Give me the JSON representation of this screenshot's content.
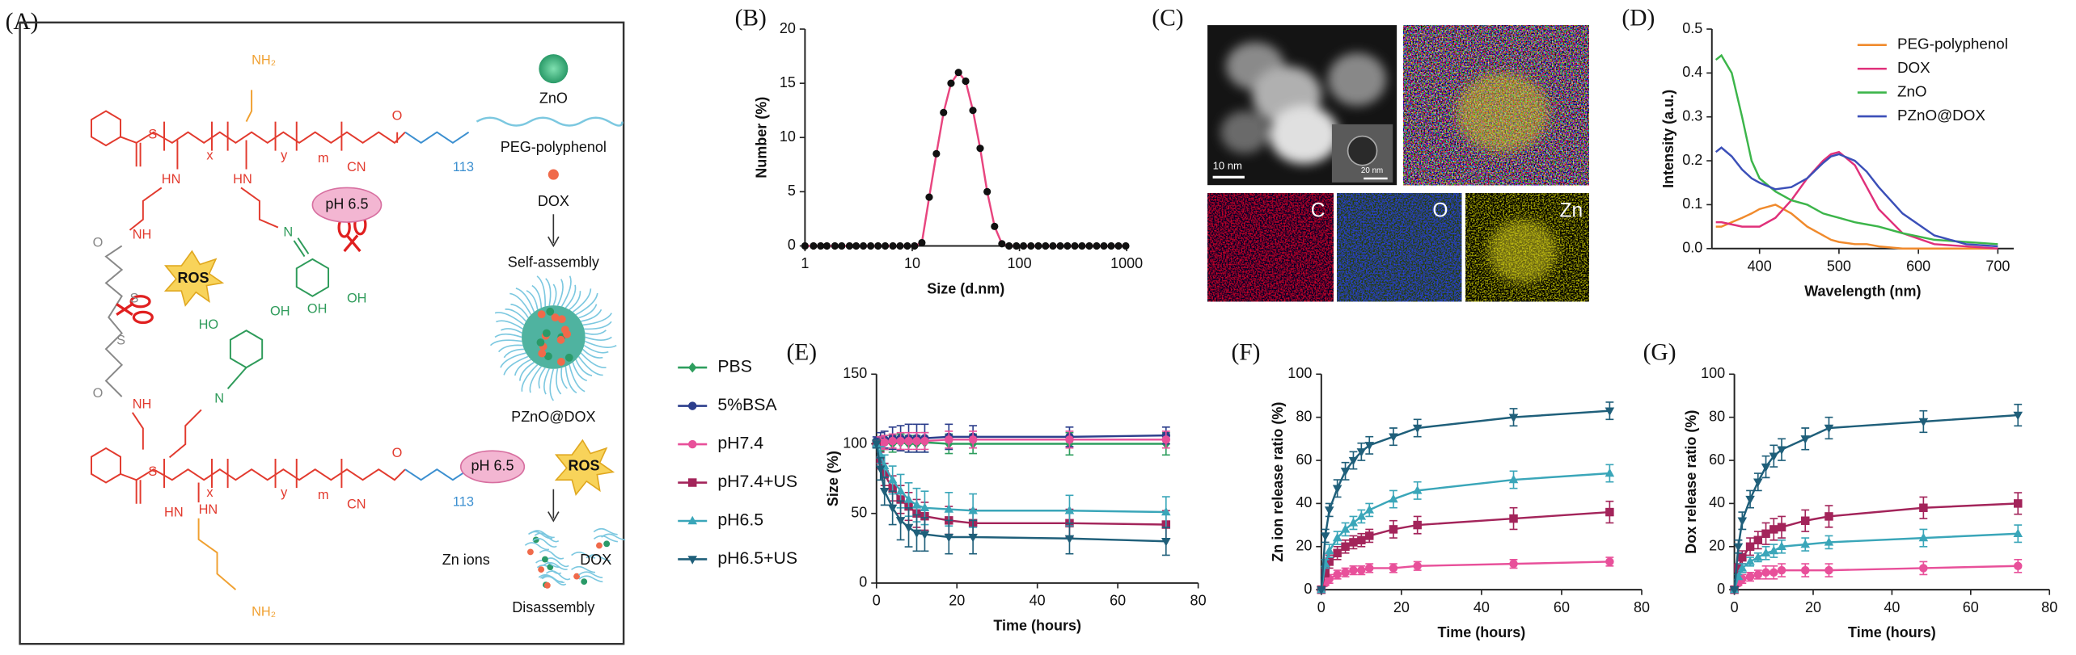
{
  "scheme": {
    "label": "(A)",
    "components": [
      "ZnO",
      "PEG-polyphenol",
      "DOX",
      "Self-assembly",
      "PZnO@DOX",
      "Disassembly"
    ],
    "stimuli": [
      "pH 6.5",
      "ROS",
      "pH 6.5",
      "ROS"
    ],
    "products": [
      "Zn ions",
      "DOX"
    ],
    "chem": [
      "NH₂",
      "S",
      "x",
      "y",
      "m",
      "CN",
      "O",
      "113",
      "HN",
      "HN",
      "N",
      "OH",
      "OH",
      "HO",
      "OH",
      "N",
      "O",
      "S",
      "S",
      "O",
      "S",
      "HN",
      "HN",
      "x",
      "y",
      "m",
      "CN",
      "O",
      "113",
      "NH₂",
      "NH",
      "NH"
    ]
  },
  "microscopy": {
    "label": "(C)",
    "scale_bars": [
      "10 nm",
      "20 nm"
    ],
    "maps": [
      "C",
      "O",
      "Zn"
    ]
  },
  "chart_data": [
    {
      "type": "line",
      "panel_label": "(B)",
      "xlabel": "Size (d.nm)",
      "ylabel": "Number (%)",
      "xscale": "log",
      "xlim": [
        1,
        1000
      ],
      "xticks": [
        1,
        10,
        100,
        1000
      ],
      "ylim": [
        0,
        20
      ],
      "yticks": [
        0,
        5,
        10,
        15,
        20
      ],
      "x": [
        1,
        1.2,
        1.4,
        1.6,
        1.9,
        2.2,
        2.6,
        3,
        3.5,
        4.1,
        4.8,
        5.6,
        6.6,
        7.7,
        9,
        10.5,
        12.3,
        14.4,
        16.8,
        19.6,
        23,
        27,
        31.5,
        36.8,
        43,
        50,
        58.6,
        68.6,
        80,
        93.6,
        109,
        128,
        150,
        175,
        205,
        240,
        280,
        328,
        383,
        448,
        524,
        613,
        717,
        838,
        980
      ],
      "series": [
        {
          "color": "#e8457f",
          "marker": "circle",
          "marker_color": "#111111",
          "values": [
            0,
            0,
            0,
            0,
            0,
            0,
            0,
            0,
            0,
            0,
            0,
            0,
            0,
            0,
            0,
            0,
            0.3,
            4.5,
            8.5,
            12.3,
            15,
            16,
            15.2,
            12.5,
            9,
            5,
            1.8,
            0.2,
            0,
            0,
            0,
            0,
            0,
            0,
            0,
            0,
            0,
            0,
            0,
            0,
            0,
            0,
            0,
            0,
            0
          ]
        }
      ]
    },
    {
      "type": "line",
      "panel_label": "(D)",
      "xlabel": "Wavelength (nm)",
      "ylabel": "Intensity (a.u.)",
      "xlim": [
        340,
        720
      ],
      "xticks": [
        400,
        500,
        600,
        700
      ],
      "ylim": [
        0,
        0.5
      ],
      "yticks": [
        {
          "value": 0,
          "label": "0.0"
        },
        0.1,
        0.2,
        0.3,
        0.4,
        0.5
      ],
      "legend": "top-right",
      "x": [
        345,
        352,
        365,
        378,
        390,
        400,
        420,
        440,
        460,
        480,
        490,
        500,
        520,
        535,
        550,
        580,
        620,
        660,
        700
      ],
      "series": [
        {
          "name": "PEG-polyphenol",
          "color": "#f08a2c",
          "values": [
            0.05,
            0.05,
            0.06,
            0.07,
            0.08,
            0.09,
            0.1,
            0.08,
            0.05,
            0.03,
            0.02,
            0.015,
            0.01,
            0.01,
            0.005,
            0,
            0,
            0,
            0
          ]
        },
        {
          "name": "DOX",
          "color": "#e0307a",
          "values": [
            0.06,
            0.06,
            0.055,
            0.05,
            0.05,
            0.05,
            0.07,
            0.11,
            0.16,
            0.2,
            0.215,
            0.22,
            0.19,
            0.14,
            0.09,
            0.035,
            0.01,
            0.005,
            0
          ]
        },
        {
          "name": "ZnO",
          "color": "#3cb54a",
          "values": [
            0.43,
            0.44,
            0.4,
            0.3,
            0.2,
            0.16,
            0.13,
            0.11,
            0.1,
            0.08,
            0.075,
            0.07,
            0.06,
            0.055,
            0.05,
            0.035,
            0.02,
            0.015,
            0.01
          ]
        },
        {
          "name": "PZnO@DOX",
          "color": "#3b4fb8",
          "values": [
            0.22,
            0.23,
            0.21,
            0.18,
            0.16,
            0.15,
            0.135,
            0.14,
            0.16,
            0.195,
            0.21,
            0.215,
            0.2,
            0.175,
            0.14,
            0.08,
            0.03,
            0.01,
            0.005
          ]
        }
      ]
    },
    {
      "type": "line",
      "panel_label": "(E)",
      "xlabel": "Time (hours)",
      "ylabel": "Size (%)",
      "xlim": [
        0,
        80
      ],
      "xticks": [
        0,
        20,
        40,
        60,
        80
      ],
      "ylim": [
        0,
        150
      ],
      "yticks": [
        0,
        50,
        100,
        150
      ],
      "legend": "left",
      "x": [
        0,
        1,
        2,
        4,
        6,
        8,
        10,
        12,
        18,
        24,
        48,
        72
      ],
      "series": [
        {
          "name": "PBS",
          "color": "#2e9e5e",
          "marker": "diamond",
          "values": [
            100,
            100,
            101,
            100,
            101,
            100,
            100,
            101,
            100,
            100,
            100,
            100
          ],
          "errors": [
            3,
            5,
            5,
            6,
            6,
            6,
            6,
            7,
            7,
            7,
            8,
            8
          ]
        },
        {
          "name": "5%BSA",
          "color": "#2c3e8c",
          "marker": "circle",
          "values": [
            102,
            103,
            103,
            104,
            104,
            104,
            104,
            104,
            105,
            105,
            105,
            106
          ],
          "errors": [
            3,
            5,
            6,
            8,
            9,
            10,
            10,
            10,
            9,
            8,
            7,
            6
          ]
        },
        {
          "name": "pH7.4",
          "color": "#e8509a",
          "marker": "circle",
          "values": [
            100,
            101,
            101,
            102,
            102,
            102,
            102,
            102,
            103,
            103,
            103,
            103
          ],
          "errors": [
            2,
            4,
            5,
            5,
            6,
            6,
            6,
            6,
            6,
            6,
            6,
            6
          ]
        },
        {
          "name": "pH7.4+US",
          "color": "#a3245a",
          "marker": "square",
          "values": [
            100,
            88,
            78,
            68,
            60,
            55,
            50,
            48,
            45,
            43,
            43,
            42
          ],
          "errors": [
            3,
            6,
            8,
            9,
            10,
            10,
            10,
            10,
            10,
            10,
            10,
            10
          ]
        },
        {
          "name": "pH6.5",
          "color": "#3aa6b9",
          "marker": "triangle",
          "values": [
            100,
            92,
            84,
            74,
            66,
            60,
            56,
            54,
            53,
            52,
            52,
            51
          ],
          "errors": [
            3,
            6,
            8,
            10,
            12,
            12,
            12,
            12,
            12,
            12,
            11,
            11
          ]
        },
        {
          "name": "pH6.5+US",
          "color": "#1f5f7a",
          "marker": "triangle-down",
          "values": [
            100,
            82,
            66,
            54,
            45,
            40,
            36,
            35,
            33,
            33,
            32,
            30
          ],
          "errors": [
            3,
            8,
            10,
            12,
            14,
            14,
            13,
            12,
            12,
            12,
            11,
            10
          ]
        }
      ]
    },
    {
      "type": "line",
      "panel_label": "(F)",
      "xlabel": "Time (hours)",
      "ylabel": "Zn ion release ratio (%)",
      "xlim": [
        0,
        80
      ],
      "xticks": [
        0,
        20,
        40,
        60,
        80
      ],
      "ylim": [
        0,
        100
      ],
      "yticks": [
        0,
        20,
        40,
        60,
        80,
        100
      ],
      "x": [
        0,
        1,
        2,
        4,
        6,
        8,
        10,
        12,
        18,
        24,
        48,
        72
      ],
      "series": [
        {
          "color": "#e8509a",
          "marker": "circle",
          "values": [
            0,
            3,
            5,
            7,
            8,
            9,
            9,
            10,
            10,
            11,
            12,
            13
          ],
          "errors": [
            0,
            1,
            2,
            2,
            2,
            2,
            2,
            2,
            2,
            2,
            2,
            2
          ]
        },
        {
          "color": "#a3245a",
          "marker": "square",
          "values": [
            0,
            8,
            13,
            17,
            20,
            22,
            23,
            25,
            28,
            30,
            33,
            36
          ],
          "errors": [
            0,
            2,
            3,
            3,
            3,
            3,
            3,
            3,
            4,
            4,
            5,
            5
          ]
        },
        {
          "color": "#3aa6b9",
          "marker": "triangle",
          "values": [
            0,
            12,
            18,
            24,
            28,
            31,
            34,
            37,
            42,
            46,
            51,
            54
          ],
          "errors": [
            0,
            2,
            3,
            3,
            3,
            3,
            3,
            3,
            4,
            4,
            4,
            4
          ]
        },
        {
          "color": "#1f5f7a",
          "marker": "triangle-down",
          "values": [
            0,
            25,
            37,
            47,
            55,
            60,
            64,
            67,
            71,
            75,
            80,
            83
          ],
          "errors": [
            0,
            3,
            3,
            4,
            4,
            4,
            4,
            4,
            4,
            4,
            4,
            4
          ]
        }
      ]
    },
    {
      "type": "line",
      "panel_label": "(G)",
      "xlabel": "Time (hours)",
      "ylabel": "Dox release ratio (%)",
      "xlim": [
        0,
        80
      ],
      "xticks": [
        0,
        20,
        40,
        60,
        80
      ],
      "ylim": [
        0,
        100
      ],
      "yticks": [
        0,
        20,
        40,
        60,
        80,
        100
      ],
      "x": [
        0,
        1,
        2,
        4,
        6,
        8,
        10,
        12,
        18,
        24,
        48,
        72
      ],
      "series": [
        {
          "color": "#e8509a",
          "marker": "circle",
          "values": [
            0,
            3,
            5,
            6,
            7,
            8,
            8,
            9,
            9,
            9,
            10,
            11
          ],
          "errors": [
            0,
            1,
            2,
            2,
            2,
            3,
            3,
            3,
            3,
            3,
            3,
            3
          ]
        },
        {
          "color": "#a3245a",
          "marker": "square",
          "values": [
            0,
            10,
            15,
            20,
            23,
            26,
            28,
            29,
            32,
            34,
            38,
            40
          ],
          "errors": [
            0,
            2,
            3,
            4,
            4,
            5,
            5,
            5,
            5,
            5,
            5,
            5
          ]
        },
        {
          "color": "#3aa6b9",
          "marker": "triangle",
          "values": [
            0,
            6,
            10,
            13,
            15,
            17,
            18,
            20,
            21,
            22,
            24,
            26
          ],
          "errors": [
            0,
            1,
            2,
            2,
            2,
            3,
            3,
            3,
            3,
            3,
            4,
            4
          ]
        },
        {
          "color": "#1f5f7a",
          "marker": "triangle-down",
          "values": [
            0,
            20,
            32,
            42,
            50,
            57,
            62,
            65,
            70,
            75,
            78,
            81
          ],
          "errors": [
            0,
            3,
            4,
            4,
            4,
            5,
            5,
            5,
            5,
            5,
            5,
            5
          ]
        }
      ]
    }
  ]
}
